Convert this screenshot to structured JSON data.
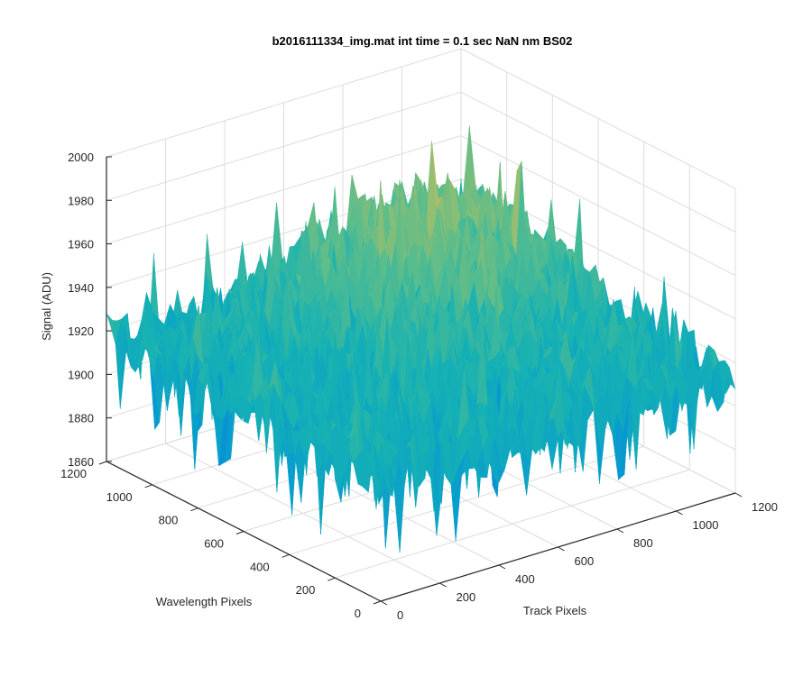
{
  "chart_data": {
    "type": "surface",
    "title": "b2016111334_img.mat int time = 0.1 sec  NaN nm BS02",
    "xlabel": "Track Pixels",
    "ylabel": "Wavelength Pixels",
    "zlabel": "Signal (ADU)",
    "xlim": [
      0,
      1200
    ],
    "ylim": [
      0,
      1200
    ],
    "zlim": [
      1860,
      2000
    ],
    "x_ticks": [
      "0",
      "200",
      "400",
      "600",
      "800",
      "1000",
      "1200"
    ],
    "y_ticks": [
      "0",
      "200",
      "400",
      "600",
      "800",
      "1000",
      "1200"
    ],
    "z_ticks": [
      "1860",
      "1880",
      "1900",
      "1920",
      "1940",
      "1960",
      "1980",
      "2000"
    ],
    "surface": {
      "mean_signal": 1925,
      "max_signal": 1995,
      "min_signal": 1870,
      "colormap": "parula"
    },
    "grid": true
  }
}
